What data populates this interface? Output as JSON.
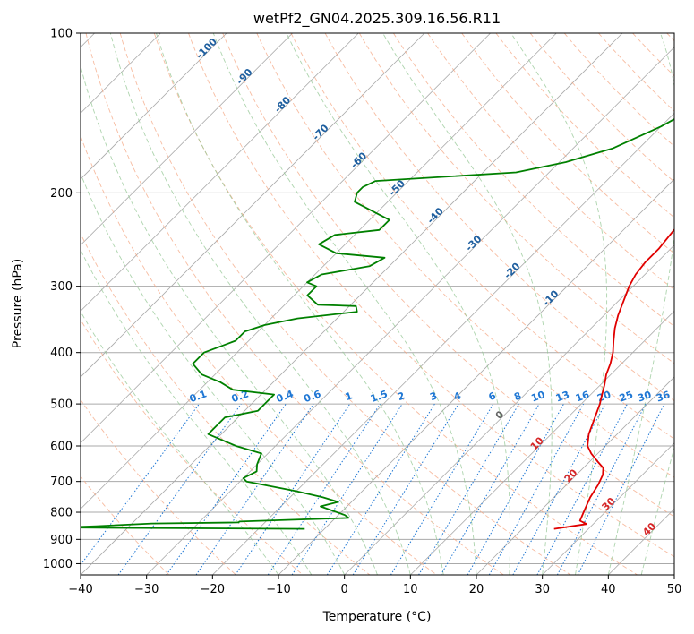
{
  "chart_data": {
    "type": "line",
    "title": "wetPf2_GN04.2025.309.16.56.R11",
    "xlabel": "Temperature (°C)",
    "ylabel": "Pressure (hPa)",
    "xlim": [
      -40,
      50
    ],
    "ylim": [
      1050,
      100
    ],
    "y_scale": "log",
    "grid": true,
    "x_ticks": [
      -40,
      -30,
      -20,
      -10,
      0,
      10,
      20,
      30,
      40,
      50
    ],
    "x_tick_labels": [
      "−40",
      "−30",
      "−20",
      "−10",
      "0",
      "10",
      "20",
      "30",
      "40",
      "50"
    ],
    "y_ticks": [
      100,
      200,
      300,
      400,
      500,
      600,
      700,
      800,
      900,
      1000
    ],
    "y_tick_labels": [
      "100",
      "200",
      "300",
      "400",
      "500",
      "600",
      "700",
      "800",
      "900",
      "1000"
    ],
    "colors": {
      "temperature": "#e00000",
      "dewpoint": "#008000",
      "isotherm": "#aaaaaa",
      "dry_adiabat": "#f4a582",
      "moist_adiabat": "#92c592",
      "mixing_ratio": "#1f77d4",
      "isotherm_label": "#1f5f9f",
      "dry_adiabat_label": "#d62728",
      "freezing_label": "#666666"
    },
    "series": [
      {
        "role": "temperature",
        "points": [
          [
            24.8,
            860
          ],
          [
            29,
            842
          ],
          [
            27.5,
            830
          ],
          [
            26.5,
            790
          ],
          [
            25.5,
            750
          ],
          [
            24.8,
            710
          ],
          [
            24,
            680
          ],
          [
            23,
            660
          ],
          [
            21,
            640
          ],
          [
            19,
            620
          ],
          [
            17.3,
            600
          ],
          [
            15.7,
            570
          ],
          [
            14.5,
            540
          ],
          [
            12.8,
            500
          ],
          [
            11.7,
            480
          ],
          [
            10.6,
            460
          ],
          [
            9.3,
            440
          ],
          [
            8.3,
            420
          ],
          [
            7,
            400
          ],
          [
            5.3,
            380
          ],
          [
            3.6,
            360
          ],
          [
            2.1,
            340
          ],
          [
            0.8,
            320
          ],
          [
            -0.6,
            300
          ],
          [
            -1.4,
            285
          ],
          [
            -1.8,
            270
          ],
          [
            -1.8,
            255
          ],
          [
            -2.2,
            240
          ],
          [
            -2.6,
            225
          ],
          [
            -2.6,
            210
          ],
          [
            -3.3,
            200
          ],
          [
            -4.6,
            190
          ],
          [
            -5.8,
            180
          ],
          [
            -6.6,
            170
          ],
          [
            -7.3,
            160
          ],
          [
            -7.3,
            150
          ],
          [
            -7.0,
            140
          ],
          [
            -5.7,
            130
          ],
          [
            -3.6,
            120
          ],
          [
            -1.3,
            112
          ],
          [
            0,
            108
          ],
          [
            0.8,
            103
          ],
          [
            0.6,
            100
          ]
        ]
      },
      {
        "role": "dewpoint",
        "points": [
          [
            -13,
            860
          ],
          [
            -50,
            855
          ],
          [
            -45,
            850
          ],
          [
            -37,
            840
          ],
          [
            -24,
            836
          ],
          [
            -24,
            833
          ],
          [
            -8,
            820
          ],
          [
            -9,
            810
          ],
          [
            -14,
            780
          ],
          [
            -12,
            765
          ],
          [
            -15,
            750
          ],
          [
            -20,
            730
          ],
          [
            -29,
            700
          ],
          [
            -30,
            690
          ],
          [
            -29,
            670
          ],
          [
            -30,
            650
          ],
          [
            -31,
            620
          ],
          [
            -36,
            600
          ],
          [
            -42,
            570
          ],
          [
            -42,
            530
          ],
          [
            -38,
            515
          ],
          [
            -38,
            495
          ],
          [
            -38,
            480
          ],
          [
            -45,
            470
          ],
          [
            -48,
            455
          ],
          [
            -52,
            440
          ],
          [
            -55,
            420
          ],
          [
            -55,
            400
          ],
          [
            -52,
            380
          ],
          [
            -52,
            365
          ],
          [
            -50,
            355
          ],
          [
            -46,
            345
          ],
          [
            -38,
            335
          ],
          [
            -39,
            327
          ],
          [
            -45,
            325
          ],
          [
            -48,
            312
          ],
          [
            -48,
            300
          ],
          [
            -50,
            295
          ],
          [
            -49,
            285
          ],
          [
            -43,
            275
          ],
          [
            -42,
            265
          ],
          [
            -50,
            260
          ],
          [
            -54,
            250
          ],
          [
            -53,
            240
          ],
          [
            -47,
            235
          ],
          [
            -47,
            225
          ],
          [
            -55,
            208
          ],
          [
            -56,
            200
          ],
          [
            -56,
            195
          ],
          [
            -55,
            190
          ],
          [
            -35,
            183
          ],
          [
            -29,
            175
          ],
          [
            -24,
            165
          ],
          [
            -20,
            150
          ],
          [
            -17,
            135
          ],
          [
            -16,
            120
          ],
          [
            -17,
            110
          ],
          [
            -14,
            102
          ],
          [
            -12,
            100
          ]
        ]
      }
    ],
    "isotherm_labels": [
      "-100",
      "-90",
      "-80",
      "-70",
      "-60",
      "-50",
      "-40",
      "-30",
      "-20",
      "-10"
    ],
    "isotherm_values": [
      -100,
      -90,
      -80,
      -70,
      -60,
      -50,
      -40,
      -30,
      -20,
      -10
    ],
    "freezing_label": "0",
    "dry_adiabat_labels": [
      "10",
      "20",
      "30",
      "40"
    ],
    "dry_adiabat_values": [
      10,
      20,
      30,
      40
    ],
    "mixing_ratio_labels": [
      "0.1",
      "0.2",
      "0.4",
      "0.6",
      "1",
      "1.5",
      "2",
      "3",
      "4",
      "6",
      "8",
      "10",
      "13",
      "16",
      "20",
      "25",
      "30",
      "36"
    ],
    "mixing_ratio_values": [
      0.1,
      0.2,
      0.4,
      0.6,
      1,
      1.5,
      2,
      3,
      4,
      6,
      8,
      10,
      13,
      16,
      20,
      25,
      30,
      36
    ]
  }
}
